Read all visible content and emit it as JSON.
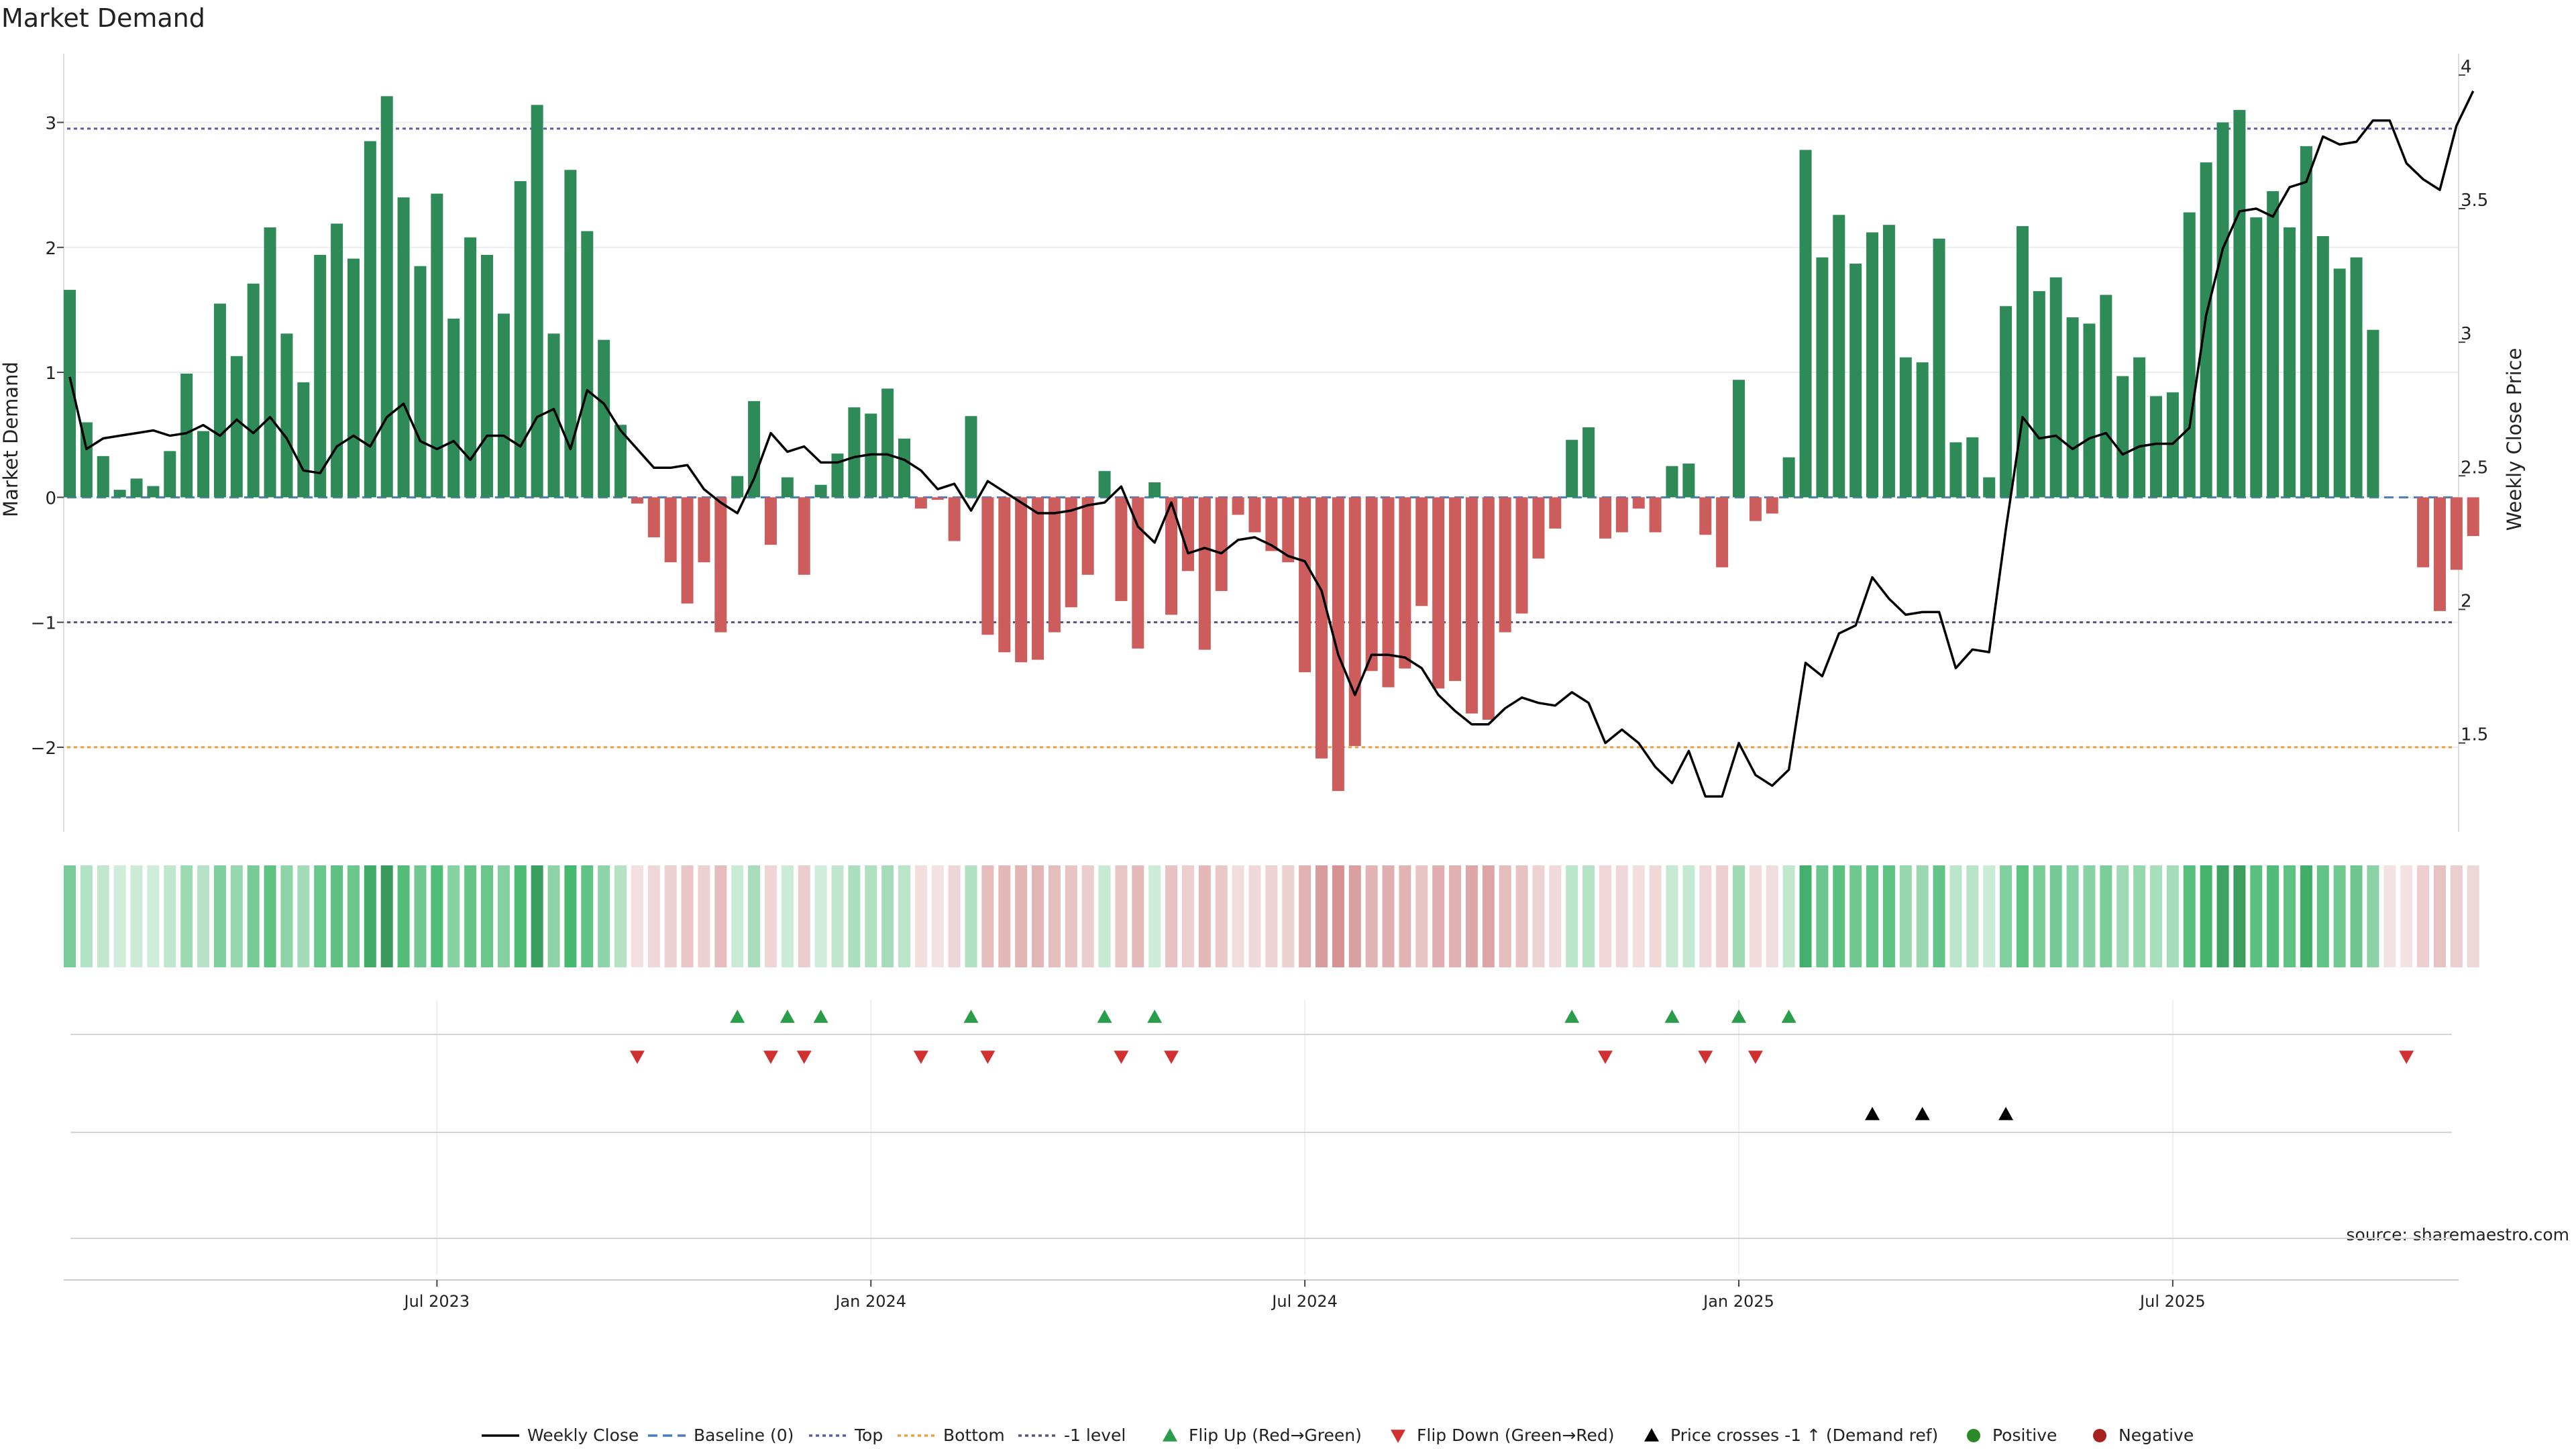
{
  "chart_data": {
    "type": "bar",
    "title": "Market Demand",
    "ylabel": "Market Demand",
    "y2label": "Weekly Close Price",
    "ylim": [
      -2.65,
      3.55
    ],
    "y2lim": [
      1.18,
      4.08
    ],
    "yticks": [
      3,
      2,
      1,
      0,
      -1,
      -2
    ],
    "ytick_labels": [
      "3",
      "2",
      "1",
      "0",
      "−1",
      "−2"
    ],
    "y2ticks": [
      4,
      3.5,
      3,
      2.5,
      2,
      1.5
    ],
    "y2tick_labels": [
      "4",
      "3.5",
      "3",
      "2.5",
      "2",
      "1.5"
    ],
    "xticks": [
      22,
      48,
      74,
      100,
      126
    ],
    "xtick_labels": [
      "Jul 2023",
      "Jan 2024",
      "Jul 2024",
      "Jan 2025",
      "Jul 2025"
    ],
    "reference_lines": {
      "top": 2.95,
      "bottom": -2.0,
      "minus_one": -1.0,
      "baseline": 0
    },
    "colors": {
      "positive": "#2e8b57",
      "negative": "#cd5c5c",
      "price": "#000000",
      "top": "#5b5ba8",
      "bottom": "#e8a040",
      "minus_one": "#55557a",
      "baseline": "#4a7db8",
      "flip_up": "#2a9d4a",
      "flip_down": "#d03030",
      "cross": "#000000",
      "legend_positive": "#2a8a2a",
      "legend_negative": "#a82222"
    },
    "demand": [
      1.66,
      0.6,
      0.33,
      0.06,
      0.15,
      0.09,
      0.37,
      0.99,
      0.53,
      1.55,
      1.13,
      1.71,
      2.16,
      1.31,
      0.92,
      1.94,
      2.19,
      1.91,
      2.85,
      3.21,
      2.4,
      1.85,
      2.43,
      1.43,
      2.08,
      1.94,
      1.47,
      2.53,
      3.14,
      1.31,
      2.62,
      2.13,
      1.26,
      0.58,
      -0.05,
      -0.32,
      -0.52,
      -0.85,
      -0.52,
      -1.08,
      0.17,
      0.77,
      -0.38,
      0.16,
      -0.62,
      0.1,
      0.35,
      0.72,
      0.67,
      0.87,
      0.47,
      -0.09,
      -0.02,
      -0.35,
      0.65,
      -1.1,
      -1.24,
      -1.32,
      -1.3,
      -1.08,
      -0.88,
      -0.62,
      0.21,
      -0.83,
      -1.21,
      0.12,
      -0.94,
      -0.59,
      -1.22,
      -0.75,
      -0.14,
      -0.28,
      -0.43,
      -0.52,
      -1.4,
      -2.09,
      -2.35,
      -1.99,
      -1.39,
      -1.52,
      -1.37,
      -0.87,
      -1.53,
      -1.47,
      -1.73,
      -1.78,
      -1.08,
      -0.93,
      -0.49,
      -0.25,
      0.46,
      0.56,
      -0.33,
      -0.28,
      -0.09,
      -0.28,
      0.25,
      0.27,
      -0.3,
      -0.56,
      0.94,
      -0.19,
      -0.13,
      0.32,
      2.78,
      1.92,
      2.26,
      1.87,
      2.12,
      2.18,
      1.12,
      1.08,
      2.07,
      0.44,
      0.48,
      0.16,
      1.53,
      2.17,
      1.65,
      1.76,
      1.44,
      1.39,
      1.62,
      0.97,
      1.12,
      0.81,
      0.84,
      2.28,
      2.68,
      3.0,
      3.1,
      2.24,
      2.45,
      2.16,
      2.81,
      2.09,
      1.83,
      1.92,
      1.34,
      0.0,
      0.0,
      -0.56,
      -0.91,
      -0.58,
      -0.31
    ],
    "price": [
      2.87,
      2.6,
      2.64,
      2.65,
      2.66,
      2.67,
      2.65,
      2.66,
      2.69,
      2.65,
      2.71,
      2.66,
      2.72,
      2.64,
      2.52,
      2.51,
      2.61,
      2.65,
      2.61,
      2.72,
      2.77,
      2.63,
      2.6,
      2.63,
      2.56,
      2.65,
      2.65,
      2.61,
      2.72,
      2.75,
      2.6,
      2.82,
      2.77,
      2.67,
      2.6,
      2.53,
      2.53,
      2.54,
      2.45,
      2.4,
      2.36,
      2.49,
      2.66,
      2.59,
      2.61,
      2.55,
      2.55,
      2.57,
      2.58,
      2.58,
      2.56,
      2.52,
      2.45,
      2.47,
      2.37,
      2.48,
      2.44,
      2.4,
      2.36,
      2.36,
      2.37,
      2.39,
      2.4,
      2.46,
      2.31,
      2.25,
      2.4,
      2.21,
      2.23,
      2.21,
      2.26,
      2.27,
      2.24,
      2.2,
      2.18,
      2.07,
      1.83,
      1.68,
      1.83,
      1.83,
      1.82,
      1.78,
      1.68,
      1.62,
      1.57,
      1.57,
      1.63,
      1.67,
      1.65,
      1.64,
      1.69,
      1.65,
      1.5,
      1.55,
      1.5,
      1.41,
      1.35,
      1.47,
      1.3,
      1.3,
      1.5,
      1.38,
      1.34,
      1.4,
      1.8,
      1.75,
      1.91,
      1.94,
      2.12,
      2.04,
      1.98,
      1.99,
      1.99,
      1.78,
      1.85,
      1.84,
      2.3,
      2.72,
      2.64,
      2.65,
      2.6,
      2.64,
      2.66,
      2.58,
      2.61,
      2.62,
      2.62,
      2.68,
      3.1,
      3.35,
      3.49,
      3.5,
      3.47,
      3.58,
      3.6,
      3.77,
      3.74,
      3.75,
      3.83,
      3.83,
      3.67,
      3.61,
      3.57,
      3.81,
      3.94
    ],
    "flip_up": [
      40,
      43,
      45,
      54,
      62,
      65,
      90,
      96,
      100,
      103
    ],
    "flip_down": [
      34,
      42,
      44,
      51,
      55,
      63,
      66,
      92,
      98,
      101,
      140
    ],
    "price_crosses": [
      108,
      111,
      116
    ],
    "legend": [
      "Weekly Close",
      "Baseline (0)",
      "Top",
      "Bottom",
      "-1 level",
      "Flip Up (Red→Green)",
      "Flip Down (Green→Red)",
      "Price crosses -1 ↑ (Demand ref)",
      "Positive",
      "Negative"
    ],
    "source_note": "source: sharemaestro.com"
  }
}
